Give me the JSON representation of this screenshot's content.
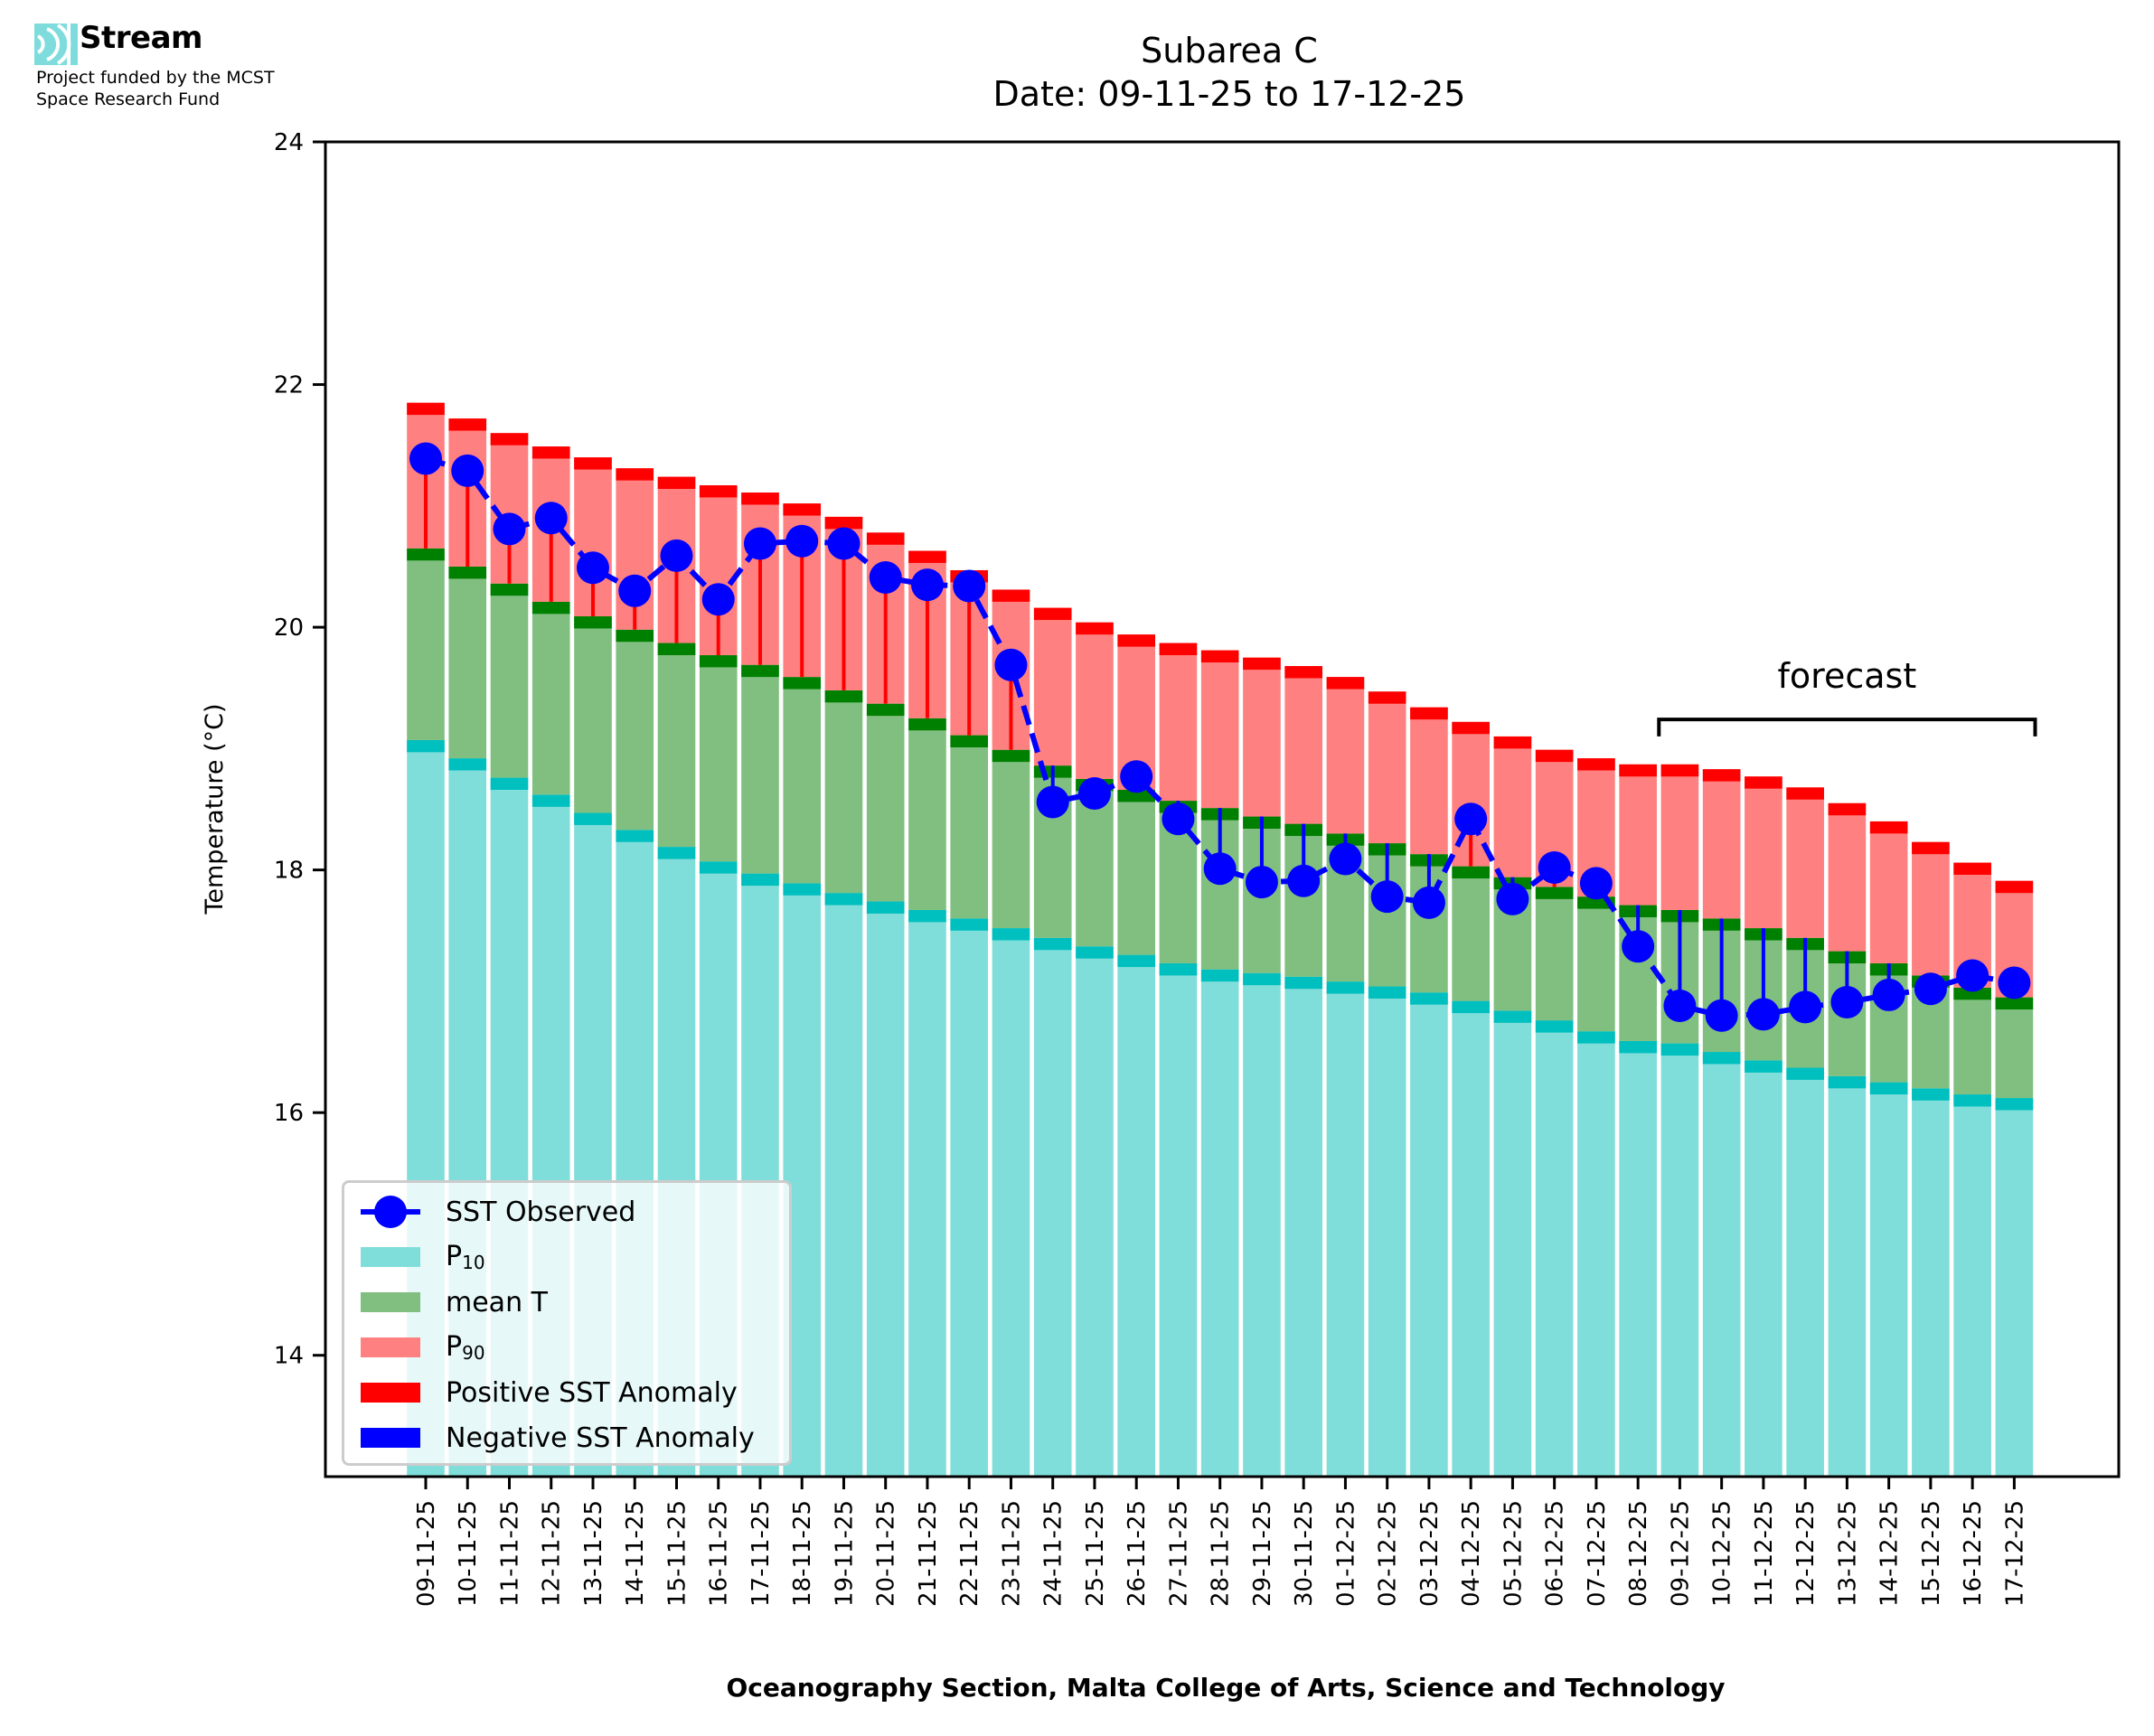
{
  "header": {
    "logo_name": "Stream",
    "funding_line1": "Project funded by the MCST",
    "funding_line2": "Space Research Fund"
  },
  "colors": {
    "p10_fill": "#80deda",
    "p10_cap": "#00bfbf",
    "mean_fill": "#80bf80",
    "mean_cap": "#008000",
    "p90_fill": "#ff8080",
    "p90_cap": "#ff0000",
    "observed": "#0000ff",
    "positive_anomaly": "#ff0000",
    "negative_anomaly": "#0000ff",
    "logo": "#7fdcdc"
  },
  "legend": {
    "items": [
      {
        "key": "observed",
        "label": "SST Observed",
        "sub": ""
      },
      {
        "key": "p10",
        "label": "P",
        "sub": "10"
      },
      {
        "key": "mean",
        "label": "mean T",
        "sub": ""
      },
      {
        "key": "p90",
        "label": "P",
        "sub": "90"
      },
      {
        "key": "positive",
        "label": "Positive SST Anomaly",
        "sub": ""
      },
      {
        "key": "negative",
        "label": "Negative SST Anomaly",
        "sub": ""
      }
    ],
    "placement": "lower-left"
  },
  "chart_data": {
    "type": "bar",
    "title": "Subarea C",
    "subtitle": "Date: 09-11-25 to 17-12-25",
    "xlabel": "Oceanography Section, Malta College of Arts, Science and Technology",
    "ylabel": "Temperature (°C)",
    "ylim": [
      13,
      24
    ],
    "yticks": [
      14,
      16,
      18,
      20,
      22,
      24
    ],
    "xlim": [
      -2.4,
      40.5
    ],
    "grid": false,
    "cap_thickness": 0.1,
    "categories": [
      "09-11-25",
      "10-11-25",
      "11-11-25",
      "12-11-25",
      "13-11-25",
      "14-11-25",
      "15-11-25",
      "16-11-25",
      "17-11-25",
      "18-11-25",
      "19-11-25",
      "20-11-25",
      "21-11-25",
      "22-11-25",
      "23-11-25",
      "24-11-25",
      "25-11-25",
      "26-11-25",
      "27-11-25",
      "28-11-25",
      "29-11-25",
      "30-11-25",
      "01-12-25",
      "02-12-25",
      "03-12-25",
      "04-12-25",
      "05-12-25",
      "06-12-25",
      "07-12-25",
      "08-12-25",
      "09-12-25",
      "10-12-25",
      "11-12-25",
      "12-12-25",
      "13-12-25",
      "14-12-25",
      "15-12-25",
      "16-12-25",
      "17-12-25"
    ],
    "series": [
      {
        "name": "P10",
        "values": [
          19.07,
          18.92,
          18.76,
          18.62,
          18.47,
          18.33,
          18.19,
          18.07,
          17.97,
          17.89,
          17.81,
          17.74,
          17.67,
          17.6,
          17.52,
          17.44,
          17.37,
          17.3,
          17.23,
          17.18,
          17.15,
          17.12,
          17.08,
          17.04,
          16.99,
          16.92,
          16.84,
          16.76,
          16.67,
          16.59,
          16.57,
          16.5,
          16.43,
          16.37,
          16.3,
          16.25,
          16.2,
          16.15,
          16.12
        ]
      },
      {
        "name": "mean T",
        "values": [
          20.65,
          20.5,
          20.36,
          20.21,
          20.09,
          19.98,
          19.87,
          19.77,
          19.69,
          19.59,
          19.48,
          19.37,
          19.25,
          19.11,
          18.99,
          18.86,
          18.75,
          18.66,
          18.57,
          18.51,
          18.44,
          18.38,
          18.3,
          18.22,
          18.13,
          18.03,
          17.94,
          17.86,
          17.78,
          17.71,
          17.67,
          17.6,
          17.52,
          17.44,
          17.33,
          17.23,
          17.13,
          17.03,
          16.95
        ]
      },
      {
        "name": "P90",
        "values": [
          21.85,
          21.72,
          21.6,
          21.49,
          21.4,
          21.31,
          21.24,
          21.17,
          21.11,
          21.02,
          20.91,
          20.78,
          20.63,
          20.47,
          20.31,
          20.16,
          20.04,
          19.94,
          19.87,
          19.81,
          19.75,
          19.68,
          19.59,
          19.47,
          19.34,
          19.22,
          19.1,
          18.99,
          18.92,
          18.87,
          18.87,
          18.83,
          18.77,
          18.68,
          18.55,
          18.4,
          18.23,
          18.06,
          17.91
        ]
      },
      {
        "name": "SST Observed",
        "values": [
          21.39,
          21.29,
          20.81,
          20.9,
          20.49,
          20.3,
          20.59,
          20.23,
          20.69,
          20.71,
          20.69,
          20.41,
          20.35,
          20.34,
          19.69,
          18.56,
          18.63,
          18.77,
          18.42,
          18.01,
          17.9,
          17.91,
          18.09,
          17.78,
          17.73,
          18.42,
          17.76,
          18.02,
          17.89,
          17.37,
          16.88,
          16.8,
          16.81,
          16.87,
          16.91,
          16.97,
          17.02,
          17.13,
          17.07
        ]
      }
    ],
    "annotations": [
      {
        "text": "forecast",
        "x_start_index": 29.5,
        "x_end_index": 38.5,
        "bracket_y": 19.24,
        "bracket_leg_y": 19.1,
        "text_y": 19.5
      }
    ]
  }
}
